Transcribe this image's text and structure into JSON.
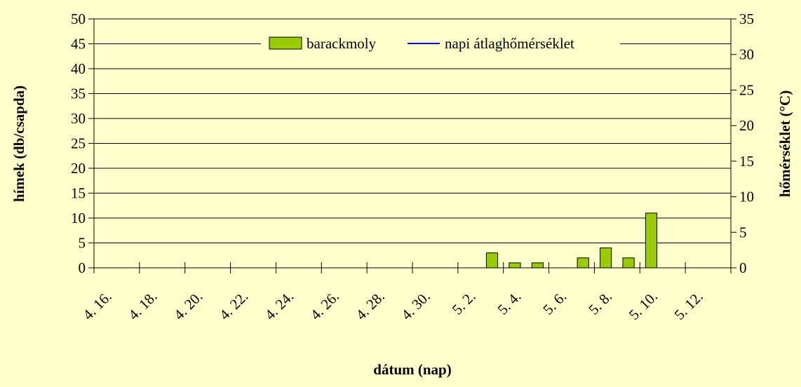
{
  "chart_data": {
    "type": "bar",
    "title": "",
    "xlabel": "dátum (nap)",
    "ylabel_left": "hímek (db/csapda)",
    "ylabel_right": "hőmérséklet (°C)",
    "ylim_left": [
      0,
      50
    ],
    "ylim_right": [
      0,
      35
    ],
    "y_ticks_left": [
      "0",
      "5",
      "10",
      "15",
      "20",
      "25",
      "30",
      "35",
      "40",
      "45",
      "50"
    ],
    "y_ticks_right": [
      "0",
      "5",
      "10",
      "15",
      "20",
      "25",
      "30",
      "35"
    ],
    "x_categories": [
      "4. 16.",
      "4. 17.",
      "4. 18.",
      "4. 19.",
      "4. 20.",
      "4. 21.",
      "4. 22.",
      "4. 23.",
      "4. 24.",
      "4. 25.",
      "4. 26.",
      "4. 27.",
      "4. 28.",
      "4. 29.",
      "4. 30.",
      "5. 1.",
      "5. 2.",
      "5. 3.",
      "5. 4.",
      "5. 5.",
      "5. 6.",
      "5. 7.",
      "5. 8.",
      "5. 9.",
      "5. 10.",
      "5. 11.",
      "5. 12.",
      "5. 13."
    ],
    "x_tick_labels": [
      "4. 16.",
      "4. 18.",
      "4. 20.",
      "4. 22.",
      "4. 24.",
      "4. 26.",
      "4. 28.",
      "4. 30.",
      "5. 2.",
      "5. 4.",
      "5. 6.",
      "5. 8.",
      "5. 10.",
      "5. 12."
    ],
    "series": [
      {
        "name": "barackmoly",
        "kind": "bar",
        "axis": "left",
        "color": "#99cc00",
        "values": [
          0,
          0,
          0,
          0,
          0,
          0,
          0,
          0,
          0,
          0,
          0,
          0,
          0,
          0,
          0,
          0,
          0,
          3,
          1,
          1,
          0,
          2,
          4,
          2,
          11,
          0,
          0,
          0
        ]
      },
      {
        "name": "napi átlaghőmérséklet",
        "kind": "line",
        "axis": "right",
        "color": "#0000cc",
        "values": []
      }
    ],
    "legend_position": "top-center",
    "grid": true
  }
}
